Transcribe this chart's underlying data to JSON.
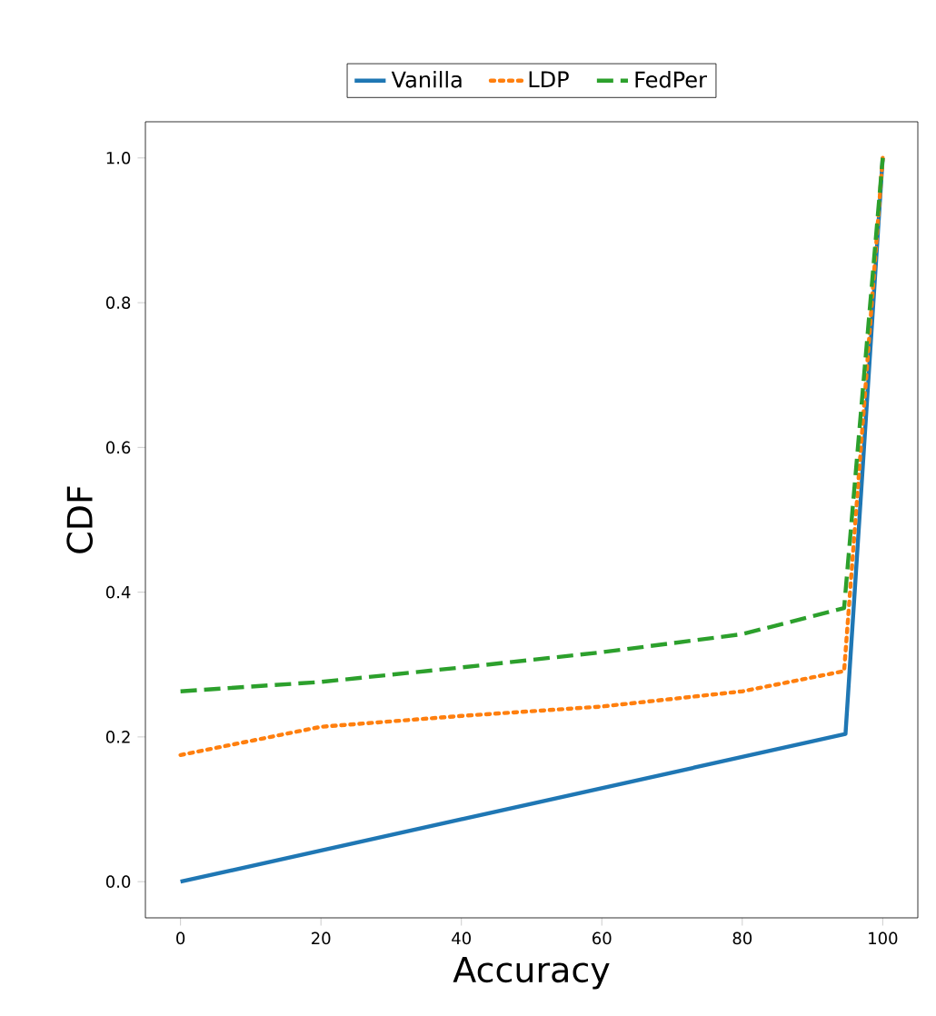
{
  "chart_data": {
    "type": "line",
    "xlabel": "Accuracy",
    "ylabel": "CDF",
    "series": [
      {
        "name": "Vanilla",
        "color": "#1f77b4",
        "line_style": "solid",
        "x": [
          0,
          94.7,
          100
        ],
        "values": [
          0.0,
          0.204,
          1.0
        ]
      },
      {
        "name": "LDP",
        "color": "#ff7f0e",
        "line_style": "dotted",
        "x": [
          0,
          20,
          40,
          60,
          80,
          94.5,
          100
        ],
        "values": [
          0.175,
          0.214,
          0.229,
          0.242,
          0.263,
          0.291,
          1.0
        ]
      },
      {
        "name": "FedPer",
        "color": "#2ca02c",
        "line_style": "dashed",
        "x": [
          0,
          20,
          40,
          60,
          80,
          94.5,
          100
        ],
        "values": [
          0.263,
          0.276,
          0.296,
          0.317,
          0.342,
          0.378,
          1.0
        ]
      }
    ],
    "xlim": [
      -5,
      105
    ],
    "ylim": [
      -0.05,
      1.05
    ],
    "xticks": [
      0,
      20,
      40,
      60,
      80,
      100
    ],
    "yticks": [
      {
        "value": 0.0,
        "label": "0.0"
      },
      {
        "value": 0.2,
        "label": "0.2"
      },
      {
        "value": 0.4,
        "label": "0.4"
      },
      {
        "value": 0.6,
        "label": "0.6"
      },
      {
        "value": 0.8,
        "label": "0.8"
      },
      {
        "value": 1.0,
        "label": "1.0"
      }
    ],
    "grid": false,
    "legend": "top",
    "marker": "none"
  }
}
